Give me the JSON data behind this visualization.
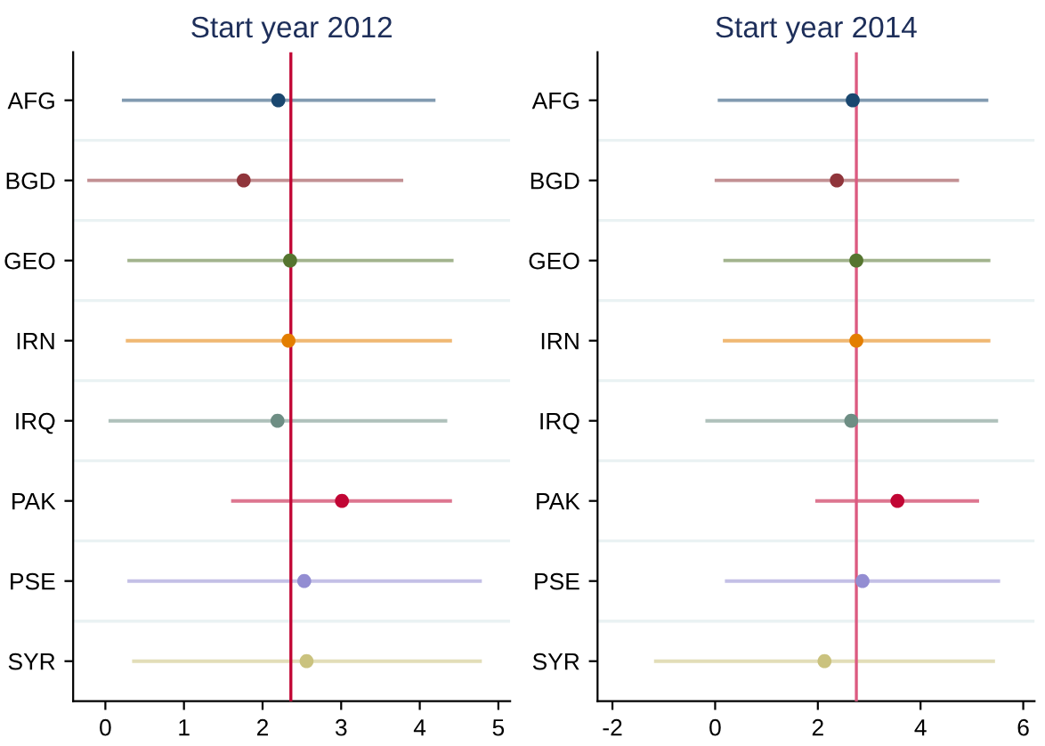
{
  "chart_data": [
    {
      "type": "scatter",
      "title": "Start year 2012",
      "orientation": "horizontal",
      "categories": [
        "AFG",
        "BGD",
        "GEO",
        "IRN",
        "IRQ",
        "PAK",
        "PSE",
        "SYR"
      ],
      "values": [
        2.2,
        1.76,
        2.35,
        2.33,
        2.19,
        3.01,
        2.53,
        2.56
      ],
      "errors": [
        [
          0.21,
          4.2
        ],
        [
          -0.23,
          3.79
        ],
        [
          0.28,
          4.43
        ],
        [
          0.26,
          4.41
        ],
        [
          0.04,
          4.35
        ],
        [
          1.6,
          4.41
        ],
        [
          0.28,
          4.79
        ],
        [
          0.34,
          4.79
        ]
      ],
      "colors": [
        "#1a476f",
        "#90353b",
        "#55752f",
        "#e37e00",
        "#6e8e84",
        "#c10534",
        "#938dd2",
        "#cac27e"
      ],
      "xlim": [
        -0.41,
        5.15
      ],
      "xticks": [
        0,
        1,
        2,
        3,
        4,
        5
      ],
      "marker": "circle",
      "grid": "y",
      "ref_lines": [
        {
          "axis": "x",
          "value": 2.36,
          "color": "#c10534"
        }
      ]
    },
    {
      "type": "scatter",
      "title": "Start year 2014",
      "orientation": "horizontal",
      "categories": [
        "AFG",
        "BGD",
        "GEO",
        "IRN",
        "IRQ",
        "PAK",
        "PSE",
        "SYR"
      ],
      "values": [
        2.68,
        2.37,
        2.75,
        2.75,
        2.65,
        3.55,
        2.87,
        2.13
      ],
      "errors": [
        [
          0.05,
          5.32
        ],
        [
          -0.01,
          4.75
        ],
        [
          0.16,
          5.36
        ],
        [
          0.15,
          5.36
        ],
        [
          -0.19,
          5.51
        ],
        [
          1.95,
          5.14
        ],
        [
          0.19,
          5.55
        ],
        [
          -1.19,
          5.45
        ]
      ],
      "colors": [
        "#1a476f",
        "#90353b",
        "#55752f",
        "#e37e00",
        "#6e8e84",
        "#c10534",
        "#938dd2",
        "#cac27e"
      ],
      "xlim": [
        -2.29,
        6.22
      ],
      "xticks": [
        -2,
        0,
        2,
        4,
        6
      ],
      "marker": "circle",
      "grid": "y",
      "ref_lines": [
        {
          "axis": "x",
          "value": 2.75,
          "color": "#dc5a80"
        }
      ]
    }
  ]
}
